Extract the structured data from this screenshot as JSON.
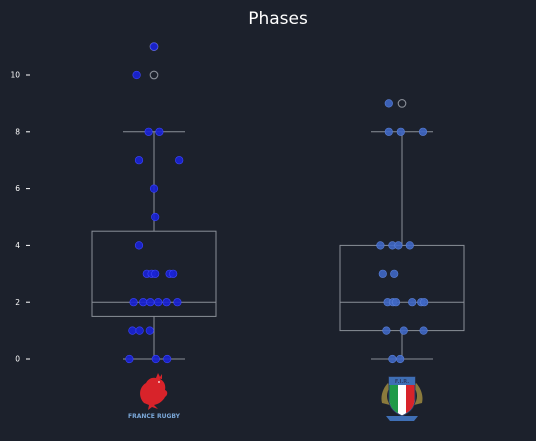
{
  "chart_data": {
    "type": "box",
    "title": "Phases",
    "xlabel": "",
    "ylabel": "",
    "ylim": [
      -0.5,
      11.5
    ],
    "yticks": [
      "0",
      "2",
      "4",
      "6",
      "8",
      "10"
    ],
    "grid": false,
    "colors": {
      "background": "#1c212c",
      "box": "#8a8f98",
      "france_points": "#1a22d6",
      "italy_points": "#3f67c4",
      "outlier": "#8a8f98"
    },
    "series": [
      {
        "team": "France",
        "logo": "france-rugby-rooster-logo",
        "logo_text": "FRANCE RUGBY",
        "box": {
          "whislo": 0,
          "q1": 1.5,
          "med": 2,
          "q3": 4.5,
          "whishi": 8,
          "fliers": [
            10,
            11
          ]
        },
        "points": [
          {
            "x": 0.0,
            "y": 11
          },
          {
            "x": -0.29,
            "y": 10
          },
          {
            "x": -0.09,
            "y": 8
          },
          {
            "x": 0.09,
            "y": 8
          },
          {
            "x": -0.25,
            "y": 7
          },
          {
            "x": 0.42,
            "y": 7
          },
          {
            "x": 0.0,
            "y": 6
          },
          {
            "x": 0.02,
            "y": 5
          },
          {
            "x": -0.25,
            "y": 4
          },
          {
            "x": -0.12,
            "y": 3
          },
          {
            "x": -0.04,
            "y": 3
          },
          {
            "x": 0.02,
            "y": 3
          },
          {
            "x": 0.26,
            "y": 3
          },
          {
            "x": 0.32,
            "y": 3
          },
          {
            "x": -0.34,
            "y": 2
          },
          {
            "x": -0.18,
            "y": 2
          },
          {
            "x": -0.06,
            "y": 2
          },
          {
            "x": 0.07,
            "y": 2
          },
          {
            "x": 0.21,
            "y": 2
          },
          {
            "x": 0.39,
            "y": 2
          },
          {
            "x": -0.36,
            "y": 1
          },
          {
            "x": -0.24,
            "y": 1
          },
          {
            "x": -0.07,
            "y": 1
          },
          {
            "x": -0.41,
            "y": 0
          },
          {
            "x": 0.03,
            "y": 0
          },
          {
            "x": 0.22,
            "y": 0
          }
        ]
      },
      {
        "team": "Italy",
        "logo": "italy-fir-rugby-shield-logo",
        "logo_text": "F.I.R.",
        "box": {
          "whislo": 0,
          "q1": 1,
          "med": 2,
          "q3": 4,
          "whishi": 8,
          "fliers": [
            9
          ]
        },
        "points": [
          {
            "x": -0.22,
            "y": 9
          },
          {
            "x": -0.22,
            "y": 8
          },
          {
            "x": -0.02,
            "y": 8
          },
          {
            "x": 0.35,
            "y": 8
          },
          {
            "x": -0.36,
            "y": 4
          },
          {
            "x": -0.16,
            "y": 4
          },
          {
            "x": -0.06,
            "y": 4
          },
          {
            "x": 0.13,
            "y": 4
          },
          {
            "x": -0.32,
            "y": 3
          },
          {
            "x": -0.13,
            "y": 3
          },
          {
            "x": -0.24,
            "y": 2
          },
          {
            "x": -0.15,
            "y": 2
          },
          {
            "x": -0.1,
            "y": 2
          },
          {
            "x": 0.17,
            "y": 2
          },
          {
            "x": 0.32,
            "y": 2
          },
          {
            "x": 0.37,
            "y": 2
          },
          {
            "x": -0.26,
            "y": 1
          },
          {
            "x": 0.03,
            "y": 1
          },
          {
            "x": 0.36,
            "y": 1
          },
          {
            "x": -0.16,
            "y": 0
          },
          {
            "x": -0.03,
            "y": 0
          }
        ]
      }
    ]
  }
}
